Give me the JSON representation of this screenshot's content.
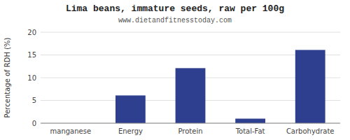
{
  "chart_data": {
    "type": "bar",
    "title": "Lima beans, immature seeds, raw per 100g",
    "subtitle": "www.dietandfitnesstoday.com",
    "categories": [
      "manganese",
      "Energy",
      "Protein",
      "Total-Fat",
      "Carbohydrate"
    ],
    "values": [
      0.0,
      6.1,
      12.1,
      1.0,
      16.1
    ],
    "color": "#2e3f8f",
    "ylabel": "Percentage of RDH (%)",
    "ylim": [
      0,
      20
    ],
    "yticks": [
      0,
      5,
      10,
      15,
      20
    ],
    "grid": true
  }
}
